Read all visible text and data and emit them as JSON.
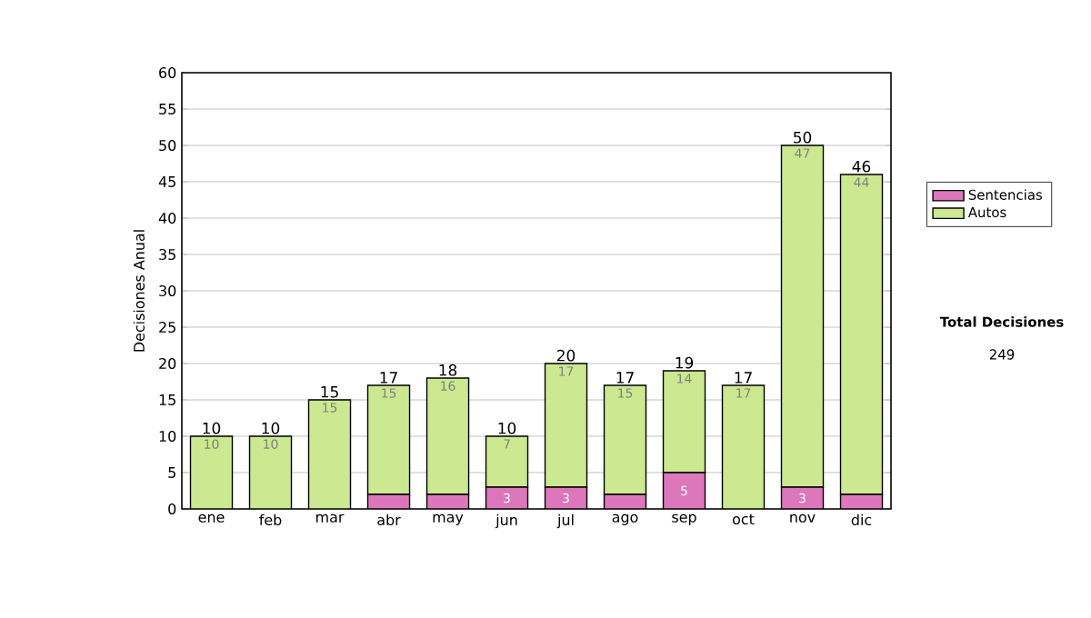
{
  "chart_data": {
    "type": "bar",
    "stacked": true,
    "ylabel": "Decisiones Anual",
    "categories": [
      "ene",
      "feb",
      "mar",
      "abr",
      "may",
      "jun",
      "jul",
      "ago",
      "sep",
      "oct",
      "nov",
      "dic"
    ],
    "series": [
      {
        "name": "Sentencias",
        "color": "#dd77bb",
        "values": [
          0,
          0,
          0,
          2,
          2,
          3,
          3,
          2,
          5,
          0,
          3,
          2
        ],
        "value_labels": [
          null,
          null,
          null,
          null,
          null,
          "3",
          "3",
          null,
          "5",
          null,
          "3",
          null
        ]
      },
      {
        "name": "Autos",
        "color": "#cce890",
        "values": [
          10,
          10,
          15,
          15,
          16,
          7,
          17,
          15,
          14,
          17,
          47,
          44
        ],
        "value_labels": [
          "10",
          "10",
          "15",
          "15",
          "16",
          "7",
          "17",
          "15",
          "14",
          "17",
          "47",
          "44"
        ]
      }
    ],
    "totals": [
      "10",
      "10",
      "15",
      "17",
      "18",
      "10",
      "20",
      "17",
      "19",
      "17",
      "50",
      "46"
    ],
    "ylim": [
      0,
      60
    ],
    "yticks": [
      0,
      5,
      10,
      15,
      20,
      25,
      30,
      35,
      40,
      45,
      50,
      55,
      60
    ],
    "grid": "y",
    "legend": "right",
    "annotations": [
      "Total Decisiones",
      "249"
    ]
  }
}
